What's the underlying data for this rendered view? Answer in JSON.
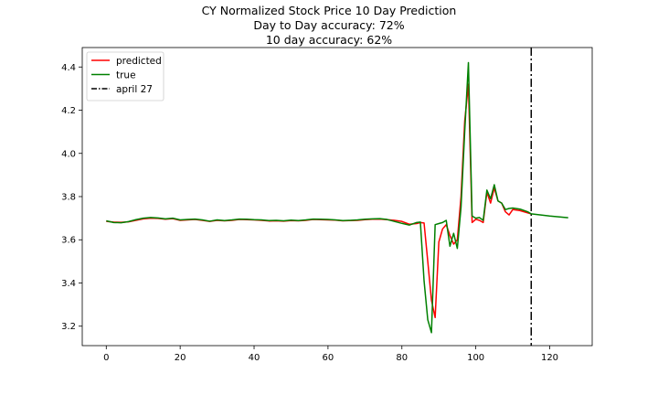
{
  "chart_data": {
    "type": "line",
    "title": "CY Normalized Stock Price 10 Day Prediction",
    "subtitle_lines": [
      "Day to Day accuracy: 72%",
      "10 day accuracy: 62%"
    ],
    "xlabel": "",
    "ylabel": "",
    "xlim": [
      -6.5,
      131.5
    ],
    "ylim": [
      3.11,
      4.49
    ],
    "xticks": [
      0,
      20,
      40,
      60,
      80,
      100,
      120
    ],
    "yticks": [
      3.2,
      3.4,
      3.6,
      3.8,
      4.0,
      4.2,
      4.4
    ],
    "ytick_labels": [
      "3.2",
      "3.4",
      "3.6",
      "3.8",
      "4.0",
      "4.2",
      "4.4"
    ],
    "grid": false,
    "legend_position": "top-left",
    "series": [
      {
        "name": "predicted",
        "color": "#ff0000",
        "points": [
          [
            0,
            3.685
          ],
          [
            2,
            3.682
          ],
          [
            4,
            3.681
          ],
          [
            6,
            3.683
          ],
          [
            8,
            3.69
          ],
          [
            10,
            3.697
          ],
          [
            12,
            3.7
          ],
          [
            14,
            3.699
          ],
          [
            16,
            3.695
          ],
          [
            18,
            3.698
          ],
          [
            20,
            3.69
          ],
          [
            22,
            3.692
          ],
          [
            24,
            3.694
          ],
          [
            26,
            3.69
          ],
          [
            28,
            3.685
          ],
          [
            30,
            3.69
          ],
          [
            32,
            3.688
          ],
          [
            34,
            3.69
          ],
          [
            36,
            3.694
          ],
          [
            38,
            3.693
          ],
          [
            40,
            3.692
          ],
          [
            42,
            3.69
          ],
          [
            44,
            3.687
          ],
          [
            46,
            3.688
          ],
          [
            48,
            3.686
          ],
          [
            50,
            3.689
          ],
          [
            52,
            3.688
          ],
          [
            54,
            3.69
          ],
          [
            56,
            3.694
          ],
          [
            58,
            3.693
          ],
          [
            60,
            3.692
          ],
          [
            62,
            3.691
          ],
          [
            64,
            3.688
          ],
          [
            66,
            3.689
          ],
          [
            68,
            3.69
          ],
          [
            70,
            3.693
          ],
          [
            72,
            3.695
          ],
          [
            74,
            3.696
          ],
          [
            76,
            3.693
          ],
          [
            78,
            3.69
          ],
          [
            80,
            3.685
          ],
          [
            82,
            3.672
          ],
          [
            84,
            3.675
          ],
          [
            85,
            3.68
          ],
          [
            86,
            3.678
          ],
          [
            87,
            3.5
          ],
          [
            88,
            3.32
          ],
          [
            89,
            3.24
          ],
          [
            90,
            3.59
          ],
          [
            91,
            3.65
          ],
          [
            92,
            3.67
          ],
          [
            93,
            3.62
          ],
          [
            94,
            3.58
          ],
          [
            95,
            3.6
          ],
          [
            96,
            3.8
          ],
          [
            97,
            4.15
          ],
          [
            98,
            4.32
          ],
          [
            99,
            3.68
          ],
          [
            100,
            3.695
          ],
          [
            101,
            3.69
          ],
          [
            102,
            3.68
          ],
          [
            103,
            3.82
          ],
          [
            104,
            3.77
          ],
          [
            105,
            3.84
          ],
          [
            106,
            3.78
          ],
          [
            107,
            3.77
          ],
          [
            108,
            3.73
          ],
          [
            109,
            3.715
          ],
          [
            110,
            3.74
          ],
          [
            112,
            3.735
          ],
          [
            114,
            3.725
          ],
          [
            115,
            3.72
          ]
        ]
      },
      {
        "name": "true",
        "color": "#008000",
        "points": [
          [
            0,
            3.688
          ],
          [
            2,
            3.68
          ],
          [
            4,
            3.679
          ],
          [
            6,
            3.684
          ],
          [
            8,
            3.693
          ],
          [
            10,
            3.7
          ],
          [
            12,
            3.703
          ],
          [
            14,
            3.701
          ],
          [
            16,
            3.697
          ],
          [
            18,
            3.7
          ],
          [
            20,
            3.692
          ],
          [
            22,
            3.694
          ],
          [
            24,
            3.696
          ],
          [
            26,
            3.692
          ],
          [
            28,
            3.686
          ],
          [
            30,
            3.692
          ],
          [
            32,
            3.689
          ],
          [
            34,
            3.692
          ],
          [
            36,
            3.696
          ],
          [
            38,
            3.695
          ],
          [
            40,
            3.693
          ],
          [
            42,
            3.692
          ],
          [
            44,
            3.689
          ],
          [
            46,
            3.69
          ],
          [
            48,
            3.688
          ],
          [
            50,
            3.691
          ],
          [
            52,
            3.689
          ],
          [
            54,
            3.692
          ],
          [
            56,
            3.696
          ],
          [
            58,
            3.695
          ],
          [
            60,
            3.694
          ],
          [
            62,
            3.692
          ],
          [
            64,
            3.689
          ],
          [
            66,
            3.69
          ],
          [
            68,
            3.692
          ],
          [
            70,
            3.695
          ],
          [
            72,
            3.697
          ],
          [
            74,
            3.698
          ],
          [
            76,
            3.694
          ],
          [
            78,
            3.685
          ],
          [
            80,
            3.676
          ],
          [
            82,
            3.668
          ],
          [
            84,
            3.68
          ],
          [
            85,
            3.682
          ],
          [
            86,
            3.41
          ],
          [
            87,
            3.23
          ],
          [
            88,
            3.17
          ],
          [
            89,
            3.67
          ],
          [
            90,
            3.675
          ],
          [
            91,
            3.68
          ],
          [
            92,
            3.69
          ],
          [
            93,
            3.57
          ],
          [
            94,
            3.63
          ],
          [
            95,
            3.56
          ],
          [
            96,
            3.75
          ],
          [
            97,
            4.1
          ],
          [
            98,
            4.42
          ],
          [
            99,
            3.71
          ],
          [
            100,
            3.7
          ],
          [
            101,
            3.703
          ],
          [
            102,
            3.69
          ],
          [
            103,
            3.83
          ],
          [
            104,
            3.79
          ],
          [
            105,
            3.855
          ],
          [
            106,
            3.78
          ],
          [
            107,
            3.77
          ],
          [
            108,
            3.74
          ],
          [
            109,
            3.745
          ],
          [
            110,
            3.747
          ],
          [
            112,
            3.742
          ],
          [
            114,
            3.73
          ],
          [
            115,
            3.72
          ],
          [
            120,
            3.71
          ],
          [
            125,
            3.702
          ]
        ]
      }
    ],
    "vline": {
      "name": "april 27",
      "x": 115,
      "color": "#000000",
      "style": "dash-dot"
    }
  }
}
